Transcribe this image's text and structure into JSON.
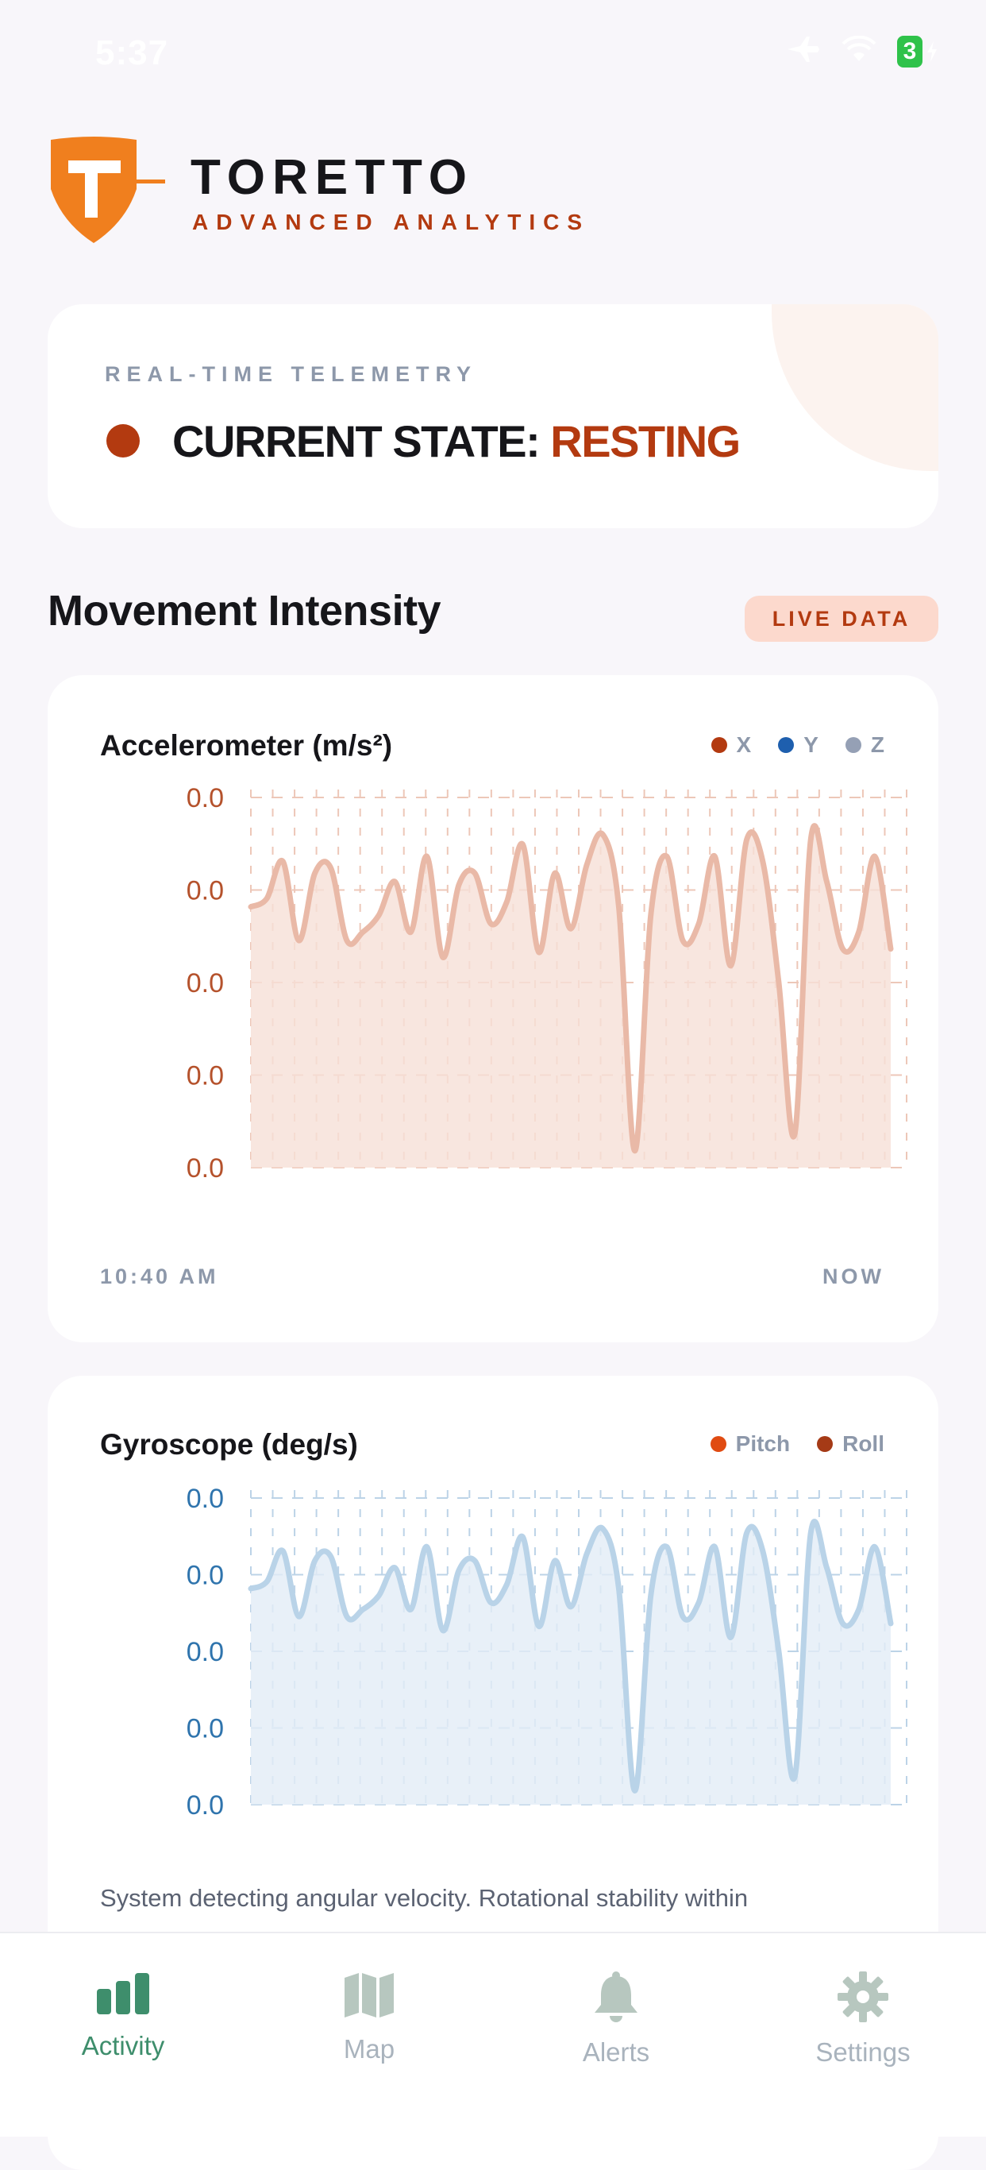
{
  "status_bar": {
    "time": "5:37",
    "battery": "3"
  },
  "brand": {
    "name": "TORETTO",
    "tagline": "ADVANCED ANALYTICS"
  },
  "state_card": {
    "label": "REAL-TIME TELEMETRY",
    "prefix": "CURRENT STATE:",
    "value": "RESTING"
  },
  "section": {
    "title": "Movement Intensity",
    "badge": "LIVE DATA"
  },
  "accelerometer": {
    "title": "Accelerometer (m/s²)",
    "legend": [
      {
        "name": "X",
        "color": "#b33a10"
      },
      {
        "name": "Y",
        "color": "#1e5fae"
      },
      {
        "name": "Z",
        "color": "#95a0b5"
      }
    ],
    "y_tick_labels": [
      "0.0",
      "0.0",
      "0.0",
      "0.0",
      "0.0"
    ],
    "start_label": "10:40 AM",
    "end_label": "NOW",
    "line_color": "#e9b9a7",
    "fill_color": "#f6e0d7",
    "grid_color": "#edc7b8",
    "tick_color": "#b5522c"
  },
  "gyroscope": {
    "title": "Gyroscope (deg/s)",
    "legend": [
      {
        "name": "Pitch",
        "color": "#e04b12"
      },
      {
        "name": "Roll",
        "color": "#a53a16"
      }
    ],
    "y_tick_labels": [
      "0.0",
      "0.0",
      "0.0",
      "0.0",
      "0.0"
    ],
    "description": "System detecting angular velocity. Rotational stability within",
    "line_color": "#b9d3e8",
    "fill_color": "#e2ecf6",
    "grid_color": "#bcd3e7",
    "tick_color": "#2f74ad"
  },
  "chart_data": [
    {
      "type": "area",
      "title": "Accelerometer (m/s²)",
      "x": [
        0,
        1,
        2,
        3,
        4,
        5,
        6,
        7,
        8,
        9,
        10,
        11,
        12,
        13,
        14,
        15,
        16,
        17,
        18,
        19,
        20,
        21,
        22,
        23,
        24,
        25,
        26,
        27,
        28,
        29,
        30,
        31,
        32,
        33,
        34,
        35,
        36,
        37,
        38,
        39,
        40
      ],
      "series": [
        {
          "name": "X",
          "values": [
            0.55,
            0.6,
            0.82,
            0.35,
            0.75,
            0.78,
            0.35,
            0.4,
            0.5,
            0.7,
            0.4,
            0.85,
            0.25,
            0.68,
            0.75,
            0.45,
            0.58,
            0.92,
            0.28,
            0.75,
            0.42,
            0.8,
            0.98,
            0.55,
            -0.9,
            0.5,
            0.85,
            0.35,
            0.45,
            0.85,
            0.2,
            0.95,
            0.82,
            0.1,
            -0.8,
            0.95,
            0.7,
            0.3,
            0.4,
            0.85,
            0.3
          ]
        }
      ],
      "y_tick_labels": [
        "0.0",
        "0.0",
        "0.0",
        "0.0",
        "0.0"
      ],
      "xlabel": "",
      "ylabel": "",
      "x_range_labels": [
        "10:40 AM",
        "NOW"
      ],
      "ylim": [
        -1,
        1.2
      ],
      "grid": true
    },
    {
      "type": "area",
      "title": "Gyroscope (deg/s)",
      "x": [
        0,
        1,
        2,
        3,
        4,
        5,
        6,
        7,
        8,
        9,
        10,
        11,
        12,
        13,
        14,
        15,
        16,
        17,
        18,
        19,
        20,
        21,
        22,
        23,
        24,
        25,
        26,
        27,
        28,
        29,
        30,
        31,
        32,
        33,
        34,
        35,
        36,
        37,
        38,
        39,
        40
      ],
      "series": [
        {
          "name": "Pitch",
          "values": [
            0.55,
            0.6,
            0.82,
            0.35,
            0.75,
            0.78,
            0.35,
            0.4,
            0.5,
            0.7,
            0.4,
            0.85,
            0.25,
            0.68,
            0.75,
            0.45,
            0.58,
            0.92,
            0.28,
            0.75,
            0.42,
            0.8,
            0.98,
            0.55,
            -0.9,
            0.5,
            0.85,
            0.35,
            0.45,
            0.85,
            0.2,
            0.95,
            0.82,
            0.1,
            -0.8,
            0.95,
            0.7,
            0.3,
            0.4,
            0.85,
            0.3
          ]
        }
      ],
      "y_tick_labels": [
        "0.0",
        "0.0",
        "0.0",
        "0.0",
        "0.0"
      ],
      "xlabel": "",
      "ylabel": "",
      "ylim": [
        -1,
        1.2
      ],
      "grid": true
    }
  ],
  "tabs": [
    {
      "label": "Activity",
      "icon": "bar-chart-icon",
      "active": true
    },
    {
      "label": "Map",
      "icon": "map-icon",
      "active": false
    },
    {
      "label": "Alerts",
      "icon": "bell-icon",
      "active": false
    },
    {
      "label": "Settings",
      "icon": "gear-icon",
      "active": false
    }
  ]
}
